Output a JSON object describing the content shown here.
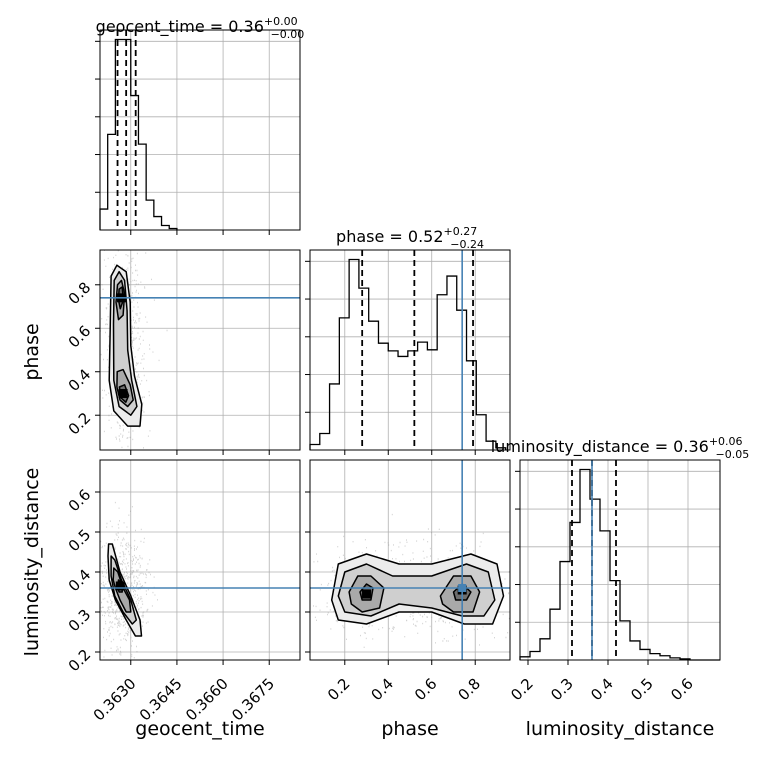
{
  "chart_data": {
    "type": "corner",
    "parameters": [
      "geocent_time",
      "phase",
      "luminosity_distance"
    ],
    "titles": [
      {
        "param": "geocent_time",
        "prefix": "geocent_time = 0.36",
        "plus": "+0.00",
        "minus": "−0.00"
      },
      {
        "param": "phase",
        "prefix": "phase = 0.52",
        "plus": "+0.27",
        "minus": "−0.24"
      },
      {
        "param": "luminosity_distance",
        "prefix": "luminosity_distance = 0.36",
        "plus": "+0.06",
        "minus": "−0.05"
      }
    ],
    "axis_labels": {
      "x": [
        "geocent_time",
        "phase",
        "luminosity_distance"
      ],
      "y": [
        "phase",
        "luminosity_distance"
      ]
    },
    "ranges": {
      "geocent_time": [
        0.362,
        0.3685
      ],
      "phase": [
        0.04,
        0.96
      ],
      "luminosity_distance": [
        0.18,
        0.68
      ]
    },
    "ticks": {
      "geocent_time": [
        "0.3630",
        "0.3645",
        "0.3660",
        "0.3675"
      ],
      "phase": [
        "0.2",
        "0.4",
        "0.6",
        "0.8"
      ],
      "luminosity_distance": [
        "0.2",
        "0.3",
        "0.4",
        "0.5",
        "0.6"
      ]
    },
    "truths": {
      "geocent_time": null,
      "phase": 0.74,
      "luminosity_distance": 0.36
    },
    "quantiles": {
      "geocent_time": [
        0.36257,
        0.36285,
        0.36316
      ],
      "phase": [
        0.28,
        0.52,
        0.79
      ],
      "luminosity_distance": [
        0.31,
        0.36,
        0.42
      ]
    },
    "histograms": {
      "geocent_time": {
        "edges": [
          0.362,
          0.36225,
          0.3625,
          0.36275,
          0.363,
          0.36325,
          0.3635,
          0.36375,
          0.364,
          0.36425,
          0.3645
        ],
        "counts": [
          28,
          128,
          255,
          255,
          180,
          115,
          40,
          18,
          6,
          2
        ]
      },
      "phase": {
        "edges": [
          0.04,
          0.085,
          0.13,
          0.175,
          0.22,
          0.265,
          0.31,
          0.355,
          0.4,
          0.445,
          0.49,
          0.535,
          0.58,
          0.625,
          0.67,
          0.715,
          0.76,
          0.805,
          0.85,
          0.895,
          0.94
        ],
        "counts": [
          5,
          15,
          60,
          120,
          173,
          147,
          117,
          97,
          90,
          85,
          90,
          98,
          91,
          141,
          158,
          127,
          81,
          32,
          8,
          2
        ]
      },
      "luminosity_distance": {
        "edges": [
          0.18,
          0.205,
          0.23,
          0.255,
          0.28,
          0.305,
          0.33,
          0.355,
          0.38,
          0.405,
          0.43,
          0.455,
          0.48,
          0.505,
          0.53,
          0.555,
          0.58,
          0.605,
          0.63,
          0.655,
          0.68
        ],
        "counts": [
          3,
          8,
          20,
          48,
          93,
          130,
          180,
          152,
          122,
          75,
          37,
          18,
          10,
          6,
          4,
          2,
          1,
          0,
          0,
          0
        ]
      }
    },
    "contours": {
      "geocent_time__phase": [
        {
          "level": 1,
          "points": [
            [
              0.36236,
              0.84
            ],
            [
              0.36255,
              0.89
            ],
            [
              0.36285,
              0.86
            ],
            [
              0.36298,
              0.72
            ],
            [
              0.363,
              0.52
            ],
            [
              0.36312,
              0.38
            ],
            [
              0.36336,
              0.25
            ],
            [
              0.3633,
              0.15
            ],
            [
              0.3629,
              0.15
            ],
            [
              0.36245,
              0.22
            ],
            [
              0.3623,
              0.36
            ],
            [
              0.36233,
              0.6
            ]
          ]
        },
        {
          "level": 2,
          "points": [
            [
              0.36246,
              0.82
            ],
            [
              0.36262,
              0.86
            ],
            [
              0.3628,
              0.82
            ],
            [
              0.36288,
              0.68
            ],
            [
              0.3629,
              0.5
            ],
            [
              0.36303,
              0.36
            ],
            [
              0.3632,
              0.24
            ],
            [
              0.363,
              0.2
            ],
            [
              0.36262,
              0.24
            ],
            [
              0.36245,
              0.36
            ],
            [
              0.36244,
              0.62
            ]
          ]
        },
        {
          "level": 3,
          "points": [
            [
              0.36257,
              0.8
            ],
            [
              0.3627,
              0.82
            ],
            [
              0.3628,
              0.76
            ],
            [
              0.36275,
              0.66
            ],
            [
              0.3626,
              0.64
            ],
            [
              0.36252,
              0.72
            ]
          ]
        },
        {
          "level": 3,
          "points": [
            [
              0.36256,
              0.4
            ],
            [
              0.36275,
              0.41
            ],
            [
              0.36298,
              0.34
            ],
            [
              0.36308,
              0.27
            ],
            [
              0.3629,
              0.24
            ],
            [
              0.36265,
              0.27
            ],
            [
              0.36255,
              0.33
            ]
          ]
        },
        {
          "level": 4,
          "points": [
            [
              0.36262,
              0.78
            ],
            [
              0.36272,
              0.79
            ],
            [
              0.36276,
              0.73
            ],
            [
              0.36266,
              0.69
            ],
            [
              0.3626,
              0.73
            ]
          ]
        },
        {
          "level": 4,
          "points": [
            [
              0.36263,
              0.33
            ],
            [
              0.3628,
              0.34
            ],
            [
              0.36293,
              0.29
            ],
            [
              0.36284,
              0.26
            ],
            [
              0.36268,
              0.28
            ]
          ]
        }
      ],
      "geocent_time__luminosity_distance": [
        {
          "level": 1,
          "points": [
            [
              0.36228,
              0.47
            ],
            [
              0.3624,
              0.47
            ],
            [
              0.36265,
              0.4
            ],
            [
              0.363,
              0.34
            ],
            [
              0.3633,
              0.28
            ],
            [
              0.36335,
              0.24
            ],
            [
              0.36315,
              0.24
            ],
            [
              0.36285,
              0.28
            ],
            [
              0.3625,
              0.33
            ],
            [
              0.3623,
              0.38
            ],
            [
              0.36226,
              0.44
            ]
          ]
        },
        {
          "level": 2,
          "points": [
            [
              0.36236,
              0.44
            ],
            [
              0.36248,
              0.43
            ],
            [
              0.3627,
              0.38
            ],
            [
              0.363,
              0.33
            ],
            [
              0.36318,
              0.28
            ],
            [
              0.36305,
              0.27
            ],
            [
              0.36275,
              0.3
            ],
            [
              0.36248,
              0.34
            ],
            [
              0.36236,
              0.39
            ]
          ]
        },
        {
          "level": 3,
          "points": [
            [
              0.36245,
              0.41
            ],
            [
              0.36258,
              0.4
            ],
            [
              0.36275,
              0.36
            ],
            [
              0.36296,
              0.33
            ],
            [
              0.363,
              0.3
            ],
            [
              0.36285,
              0.3
            ],
            [
              0.36265,
              0.33
            ],
            [
              0.3625,
              0.36
            ],
            [
              0.36243,
              0.38
            ]
          ]
        },
        {
          "level": 4,
          "points": [
            [
              0.3626,
              0.38
            ],
            [
              0.36272,
              0.37
            ],
            [
              0.36272,
              0.35
            ],
            [
              0.36262,
              0.35
            ],
            [
              0.36258,
              0.36
            ]
          ]
        }
      ],
      "phase__luminosity_distance": [
        {
          "level": 1,
          "points": [
            [
              0.14,
              0.33
            ],
            [
              0.17,
              0.42
            ],
            [
              0.3,
              0.445
            ],
            [
              0.45,
              0.42
            ],
            [
              0.6,
              0.42
            ],
            [
              0.78,
              0.445
            ],
            [
              0.9,
              0.42
            ],
            [
              0.93,
              0.34
            ],
            [
              0.88,
              0.27
            ],
            [
              0.75,
              0.27
            ],
            [
              0.6,
              0.3
            ],
            [
              0.45,
              0.3
            ],
            [
              0.3,
              0.27
            ],
            [
              0.17,
              0.28
            ]
          ]
        },
        {
          "level": 2,
          "points": [
            [
              0.17,
              0.34
            ],
            [
              0.2,
              0.4
            ],
            [
              0.3,
              0.42
            ],
            [
              0.42,
              0.39
            ],
            [
              0.6,
              0.39
            ],
            [
              0.76,
              0.42
            ],
            [
              0.86,
              0.4
            ],
            [
              0.89,
              0.33
            ],
            [
              0.84,
              0.29
            ],
            [
              0.74,
              0.29
            ],
            [
              0.6,
              0.31
            ],
            [
              0.45,
              0.32
            ],
            [
              0.32,
              0.29
            ],
            [
              0.2,
              0.3
            ]
          ]
        },
        {
          "level": 3,
          "points": [
            [
              0.22,
              0.35
            ],
            [
              0.26,
              0.39
            ],
            [
              0.32,
              0.39
            ],
            [
              0.38,
              0.36
            ],
            [
              0.36,
              0.31
            ],
            [
              0.28,
              0.3
            ],
            [
              0.23,
              0.32
            ]
          ]
        },
        {
          "level": 3,
          "points": [
            [
              0.64,
              0.34
            ],
            [
              0.7,
              0.39
            ],
            [
              0.78,
              0.39
            ],
            [
              0.82,
              0.35
            ],
            [
              0.79,
              0.3
            ],
            [
              0.7,
              0.3
            ],
            [
              0.65,
              0.32
            ]
          ]
        },
        {
          "level": 4,
          "points": [
            [
              0.27,
              0.35
            ],
            [
              0.3,
              0.37
            ],
            [
              0.33,
              0.36
            ],
            [
              0.32,
              0.33
            ],
            [
              0.28,
              0.33
            ]
          ]
        },
        {
          "level": 4,
          "points": [
            [
              0.7,
              0.35
            ],
            [
              0.74,
              0.37
            ],
            [
              0.78,
              0.35
            ],
            [
              0.76,
              0.33
            ],
            [
              0.71,
              0.33
            ]
          ]
        }
      ]
    },
    "density_peaks": {
      "geocent_time__phase": [
        [
          0.3627,
          0.74
        ],
        [
          0.36275,
          0.3
        ]
      ],
      "geocent_time__luminosity_distance": [
        [
          0.36266,
          0.365
        ]
      ],
      "phase__luminosity_distance": [
        [
          0.3,
          0.345
        ],
        [
          0.74,
          0.355
        ]
      ]
    }
  }
}
